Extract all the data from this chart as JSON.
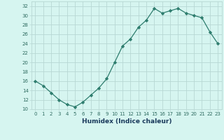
{
  "x": [
    0,
    1,
    2,
    3,
    4,
    5,
    6,
    7,
    8,
    9,
    10,
    11,
    12,
    13,
    14,
    15,
    16,
    17,
    18,
    19,
    20,
    21,
    22,
    23
  ],
  "y": [
    16,
    15,
    13.5,
    12,
    11,
    10.5,
    11.5,
    13,
    14.5,
    16.5,
    20,
    23.5,
    25,
    27.5,
    29,
    31.5,
    30.5,
    31,
    31.5,
    30.5,
    30,
    29.5,
    26.5,
    24
  ],
  "line_color": "#2e7d6e",
  "marker": "D",
  "marker_size": 2.2,
  "bg_color": "#d6f5f0",
  "grid_color": "#b8d8d4",
  "xlabel": "Humidex (Indice chaleur)",
  "ylim": [
    10,
    33
  ],
  "xlim": [
    -0.5,
    23.5
  ],
  "yticks": [
    10,
    12,
    14,
    16,
    18,
    20,
    22,
    24,
    26,
    28,
    30,
    32
  ],
  "xticks": [
    0,
    1,
    2,
    3,
    4,
    5,
    6,
    7,
    8,
    9,
    10,
    11,
    12,
    13,
    14,
    15,
    16,
    17,
    18,
    19,
    20,
    21,
    22,
    23
  ],
  "tick_fontsize": 5.0,
  "xlabel_fontsize": 6.5,
  "tick_color": "#2e6b60",
  "xlabel_color": "#1a3a5c"
}
